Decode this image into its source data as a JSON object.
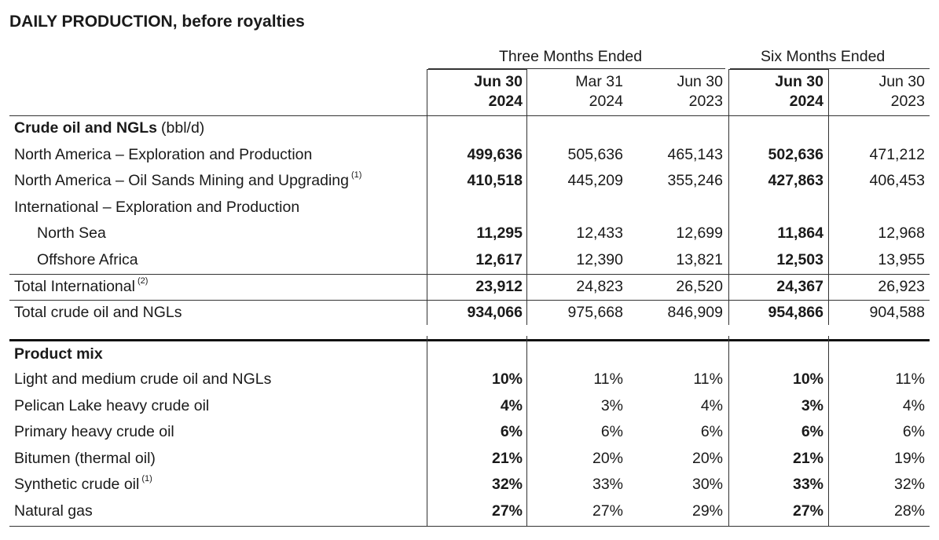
{
  "title": "DAILY PRODUCTION, before royalties",
  "groups": {
    "three_months": "Three Months Ended",
    "six_months": "Six Months Ended"
  },
  "columns": [
    {
      "line1": "Jun 30",
      "line2": "2024",
      "bold": true
    },
    {
      "line1": "Mar 31",
      "line2": "2024",
      "bold": false
    },
    {
      "line1": "Jun 30",
      "line2": "2023",
      "bold": false
    },
    {
      "line1": "Jun 30",
      "line2": "2024",
      "bold": true
    },
    {
      "line1": "Jun 30",
      "line2": "2023",
      "bold": false
    }
  ],
  "section_crude": {
    "title": "Crude oil and NGLs",
    "unit": "(bbl/d)",
    "rows": [
      {
        "label": "North America – Exploration and Production",
        "note": "",
        "values": [
          "499,636",
          "505,636",
          "465,143",
          "502,636",
          "471,212"
        ]
      },
      {
        "label": "North America – Oil Sands Mining and Upgrading",
        "note": "(1)",
        "values": [
          "410,518",
          "445,209",
          "355,246",
          "427,863",
          "406,453"
        ]
      },
      {
        "label": "International – Exploration and Production",
        "note": "",
        "values": [
          "",
          "",
          "",
          "",
          ""
        ]
      },
      {
        "label": "North Sea",
        "note": "",
        "values": [
          "11,295",
          "12,433",
          "12,699",
          "11,864",
          "12,968"
        ]
      },
      {
        "label": "Offshore Africa",
        "note": "",
        "values": [
          "12,617",
          "12,390",
          "13,821",
          "12,503",
          "13,955"
        ]
      },
      {
        "label": "Total International",
        "note": "(2)",
        "values": [
          "23,912",
          "24,823",
          "26,520",
          "24,367",
          "26,923"
        ]
      },
      {
        "label": "Total crude oil and NGLs",
        "note": "",
        "values": [
          "934,066",
          "975,668",
          "846,909",
          "954,866",
          "904,588"
        ]
      }
    ]
  },
  "section_mix": {
    "title": "Product mix",
    "rows": [
      {
        "label": "Light and medium crude oil and NGLs",
        "note": "",
        "values": [
          "10%",
          "11%",
          "11%",
          "10%",
          "11%"
        ]
      },
      {
        "label": "Pelican Lake heavy crude oil",
        "note": "",
        "values": [
          "4%",
          "3%",
          "4%",
          "3%",
          "4%"
        ]
      },
      {
        "label": "Primary heavy crude oil",
        "note": "",
        "values": [
          "6%",
          "6%",
          "6%",
          "6%",
          "6%"
        ]
      },
      {
        "label": "Bitumen (thermal oil)",
        "note": "",
        "values": [
          "21%",
          "20%",
          "20%",
          "21%",
          "19%"
        ]
      },
      {
        "label": "Synthetic crude oil",
        "note": "(1)",
        "values": [
          "32%",
          "33%",
          "30%",
          "33%",
          "32%"
        ]
      },
      {
        "label": "Natural gas",
        "note": "",
        "values": [
          "27%",
          "27%",
          "29%",
          "27%",
          "28%"
        ]
      }
    ]
  }
}
